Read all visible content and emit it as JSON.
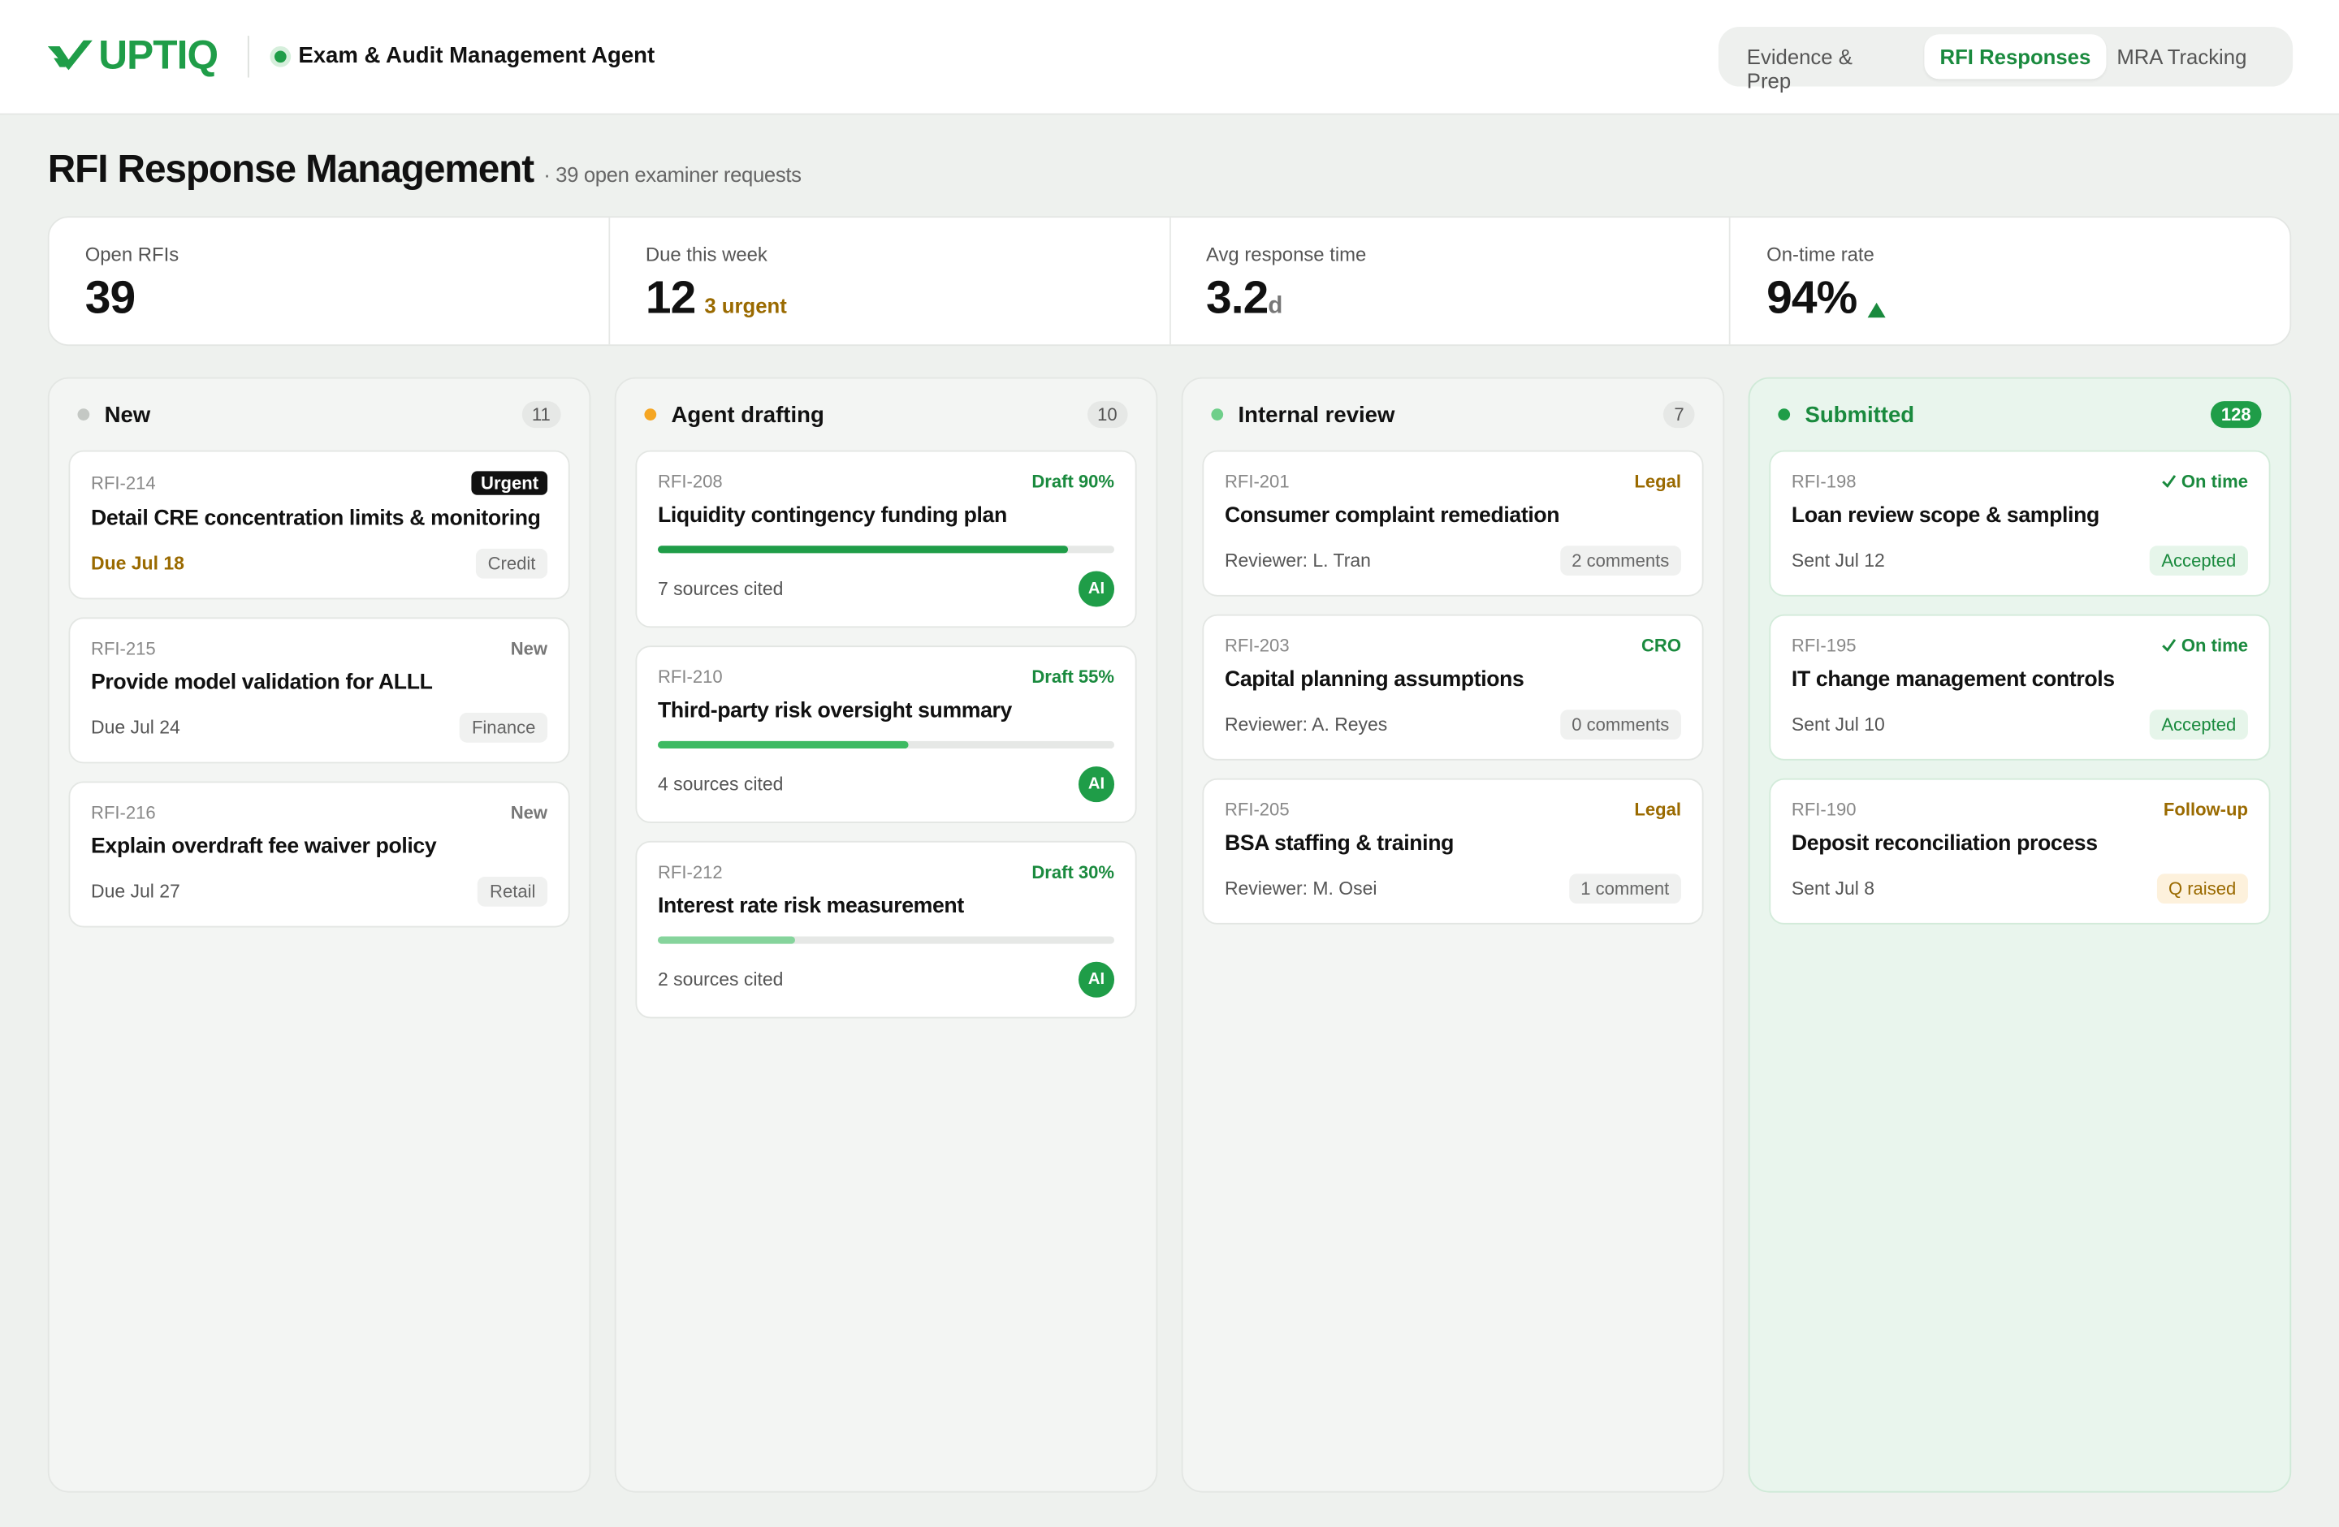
{
  "header": {
    "logo": "UPTIQ",
    "agent": "Exam & Audit Management Agent",
    "tabs": [
      "Evidence & Prep",
      "RFI Responses",
      "MRA Tracking"
    ],
    "active_tab": 1
  },
  "page": {
    "title": "RFI Response Management",
    "subtitle": "· 39 open examiner requests"
  },
  "stats": [
    {
      "label": "Open RFIs",
      "value": "39"
    },
    {
      "label": "Due this week",
      "value": "12",
      "note": "3 urgent"
    },
    {
      "label": "Avg response time",
      "value": "3.2",
      "unit": "d"
    },
    {
      "label": "On-time rate",
      "value": "94%"
    }
  ],
  "columns": [
    {
      "title": "New",
      "count": "11",
      "color": "#c4c8c4",
      "cards": [
        {
          "id": "RFI-214",
          "tag": "Urgent",
          "tag_color": "#ffffff",
          "tag_bg": "#111111",
          "title": "Detail CRE concentration limits & monitoring",
          "meta": "Due Jul 18",
          "meta_color": "#9a6a00",
          "badge": "Credit",
          "badge_color": "#666666",
          "badge_bg": "#f0f1f0"
        },
        {
          "id": "RFI-215",
          "tag": "New",
          "tag_color": "#777777",
          "title": "Provide model validation for ALLL",
          "meta": "Due Jul 24",
          "badge": "Finance",
          "badge_color": "#666666",
          "badge_bg": "#f0f1f0"
        },
        {
          "id": "RFI-216",
          "tag": "New",
          "tag_color": "#777777",
          "title": "Explain overdraft fee waiver policy",
          "meta": "Due Jul 27",
          "badge": "Retail",
          "badge_color": "#666666",
          "badge_bg": "#f0f1f0"
        }
      ]
    },
    {
      "title": "Agent drafting",
      "count": "10",
      "color": "#f5a623",
      "cards": [
        {
          "id": "RFI-208",
          "tag": "Draft 90%",
          "progress": 90,
          "bar_color": "#1f9d48",
          "tag_color": "#1a8a3e",
          "title": "Liquidity contingency funding plan",
          "meta": "7 sources cited",
          "badge": "AI",
          "badge_color": "#ffffff",
          "badge_bg": "#1f9d48"
        },
        {
          "id": "RFI-210",
          "tag": "Draft 55%",
          "progress": 55,
          "bar_color": "#3dba62",
          "tag_color": "#1a8a3e",
          "title": "Third-party risk oversight summary",
          "meta": "4 sources cited",
          "badge": "AI",
          "badge_color": "#ffffff",
          "badge_bg": "#1f9d48"
        },
        {
          "id": "RFI-212",
          "tag": "Draft 30%",
          "progress": 30,
          "bar_color": "#86d49c",
          "tag_color": "#1a8a3e",
          "title": "Interest rate risk measurement",
          "meta": "2 sources cited",
          "badge": "AI",
          "badge_color": "#ffffff",
          "badge_bg": "#1f9d48"
        }
      ]
    },
    {
      "title": "Internal review",
      "count": "7",
      "color": "#6fcf8a",
      "cards": [
        {
          "id": "RFI-201",
          "tag": "Legal",
          "tag_color": "#9a6a00",
          "title": "Consumer complaint remediation",
          "meta": "Reviewer: L. Tran",
          "badge": "2 comments",
          "badge_color": "#666666",
          "badge_bg": "#f0f1f0"
        },
        {
          "id": "RFI-203",
          "tag": "CRO",
          "tag_color": "#1a8a3e",
          "title": "Capital planning assumptions",
          "meta": "Reviewer: A. Reyes",
          "badge": "0 comments",
          "badge_color": "#666666",
          "badge_bg": "#f0f1f0"
        },
        {
          "id": "RFI-205",
          "tag": "Legal",
          "tag_color": "#9a6a00",
          "title": "BSA staffing & training",
          "meta": "Reviewer: M. Osei",
          "badge": "1 comment",
          "badge_color": "#666666",
          "badge_bg": "#f0f1f0"
        }
      ]
    },
    {
      "title": "Submitted",
      "count": "128",
      "color": "#1f9d48",
      "cards": [
        {
          "id": "RFI-198",
          "tag": "On time",
          "tag_color": "#1a8a3e",
          "title": "Loan review scope & sampling",
          "meta": "Sent Jul 12",
          "badge": "Accepted",
          "badge_color": "#1a8a3e",
          "badge_bg": "#e6f5ea"
        },
        {
          "id": "RFI-195",
          "tag": "On time",
          "tag_color": "#1a8a3e",
          "title": "IT change management controls",
          "meta": "Sent Jul 10",
          "badge": "Accepted",
          "badge_color": "#1a8a3e",
          "badge_bg": "#e6f5ea"
        },
        {
          "id": "RFI-190",
          "tag": "Follow-up",
          "tag_color": "#9a6a00",
          "title": "Deposit reconciliation process",
          "meta": "Sent Jul 8",
          "badge": "Q raised",
          "badge_color": "#9a6a00",
          "badge_bg": "#fdf1dc"
        }
      ]
    }
  ]
}
